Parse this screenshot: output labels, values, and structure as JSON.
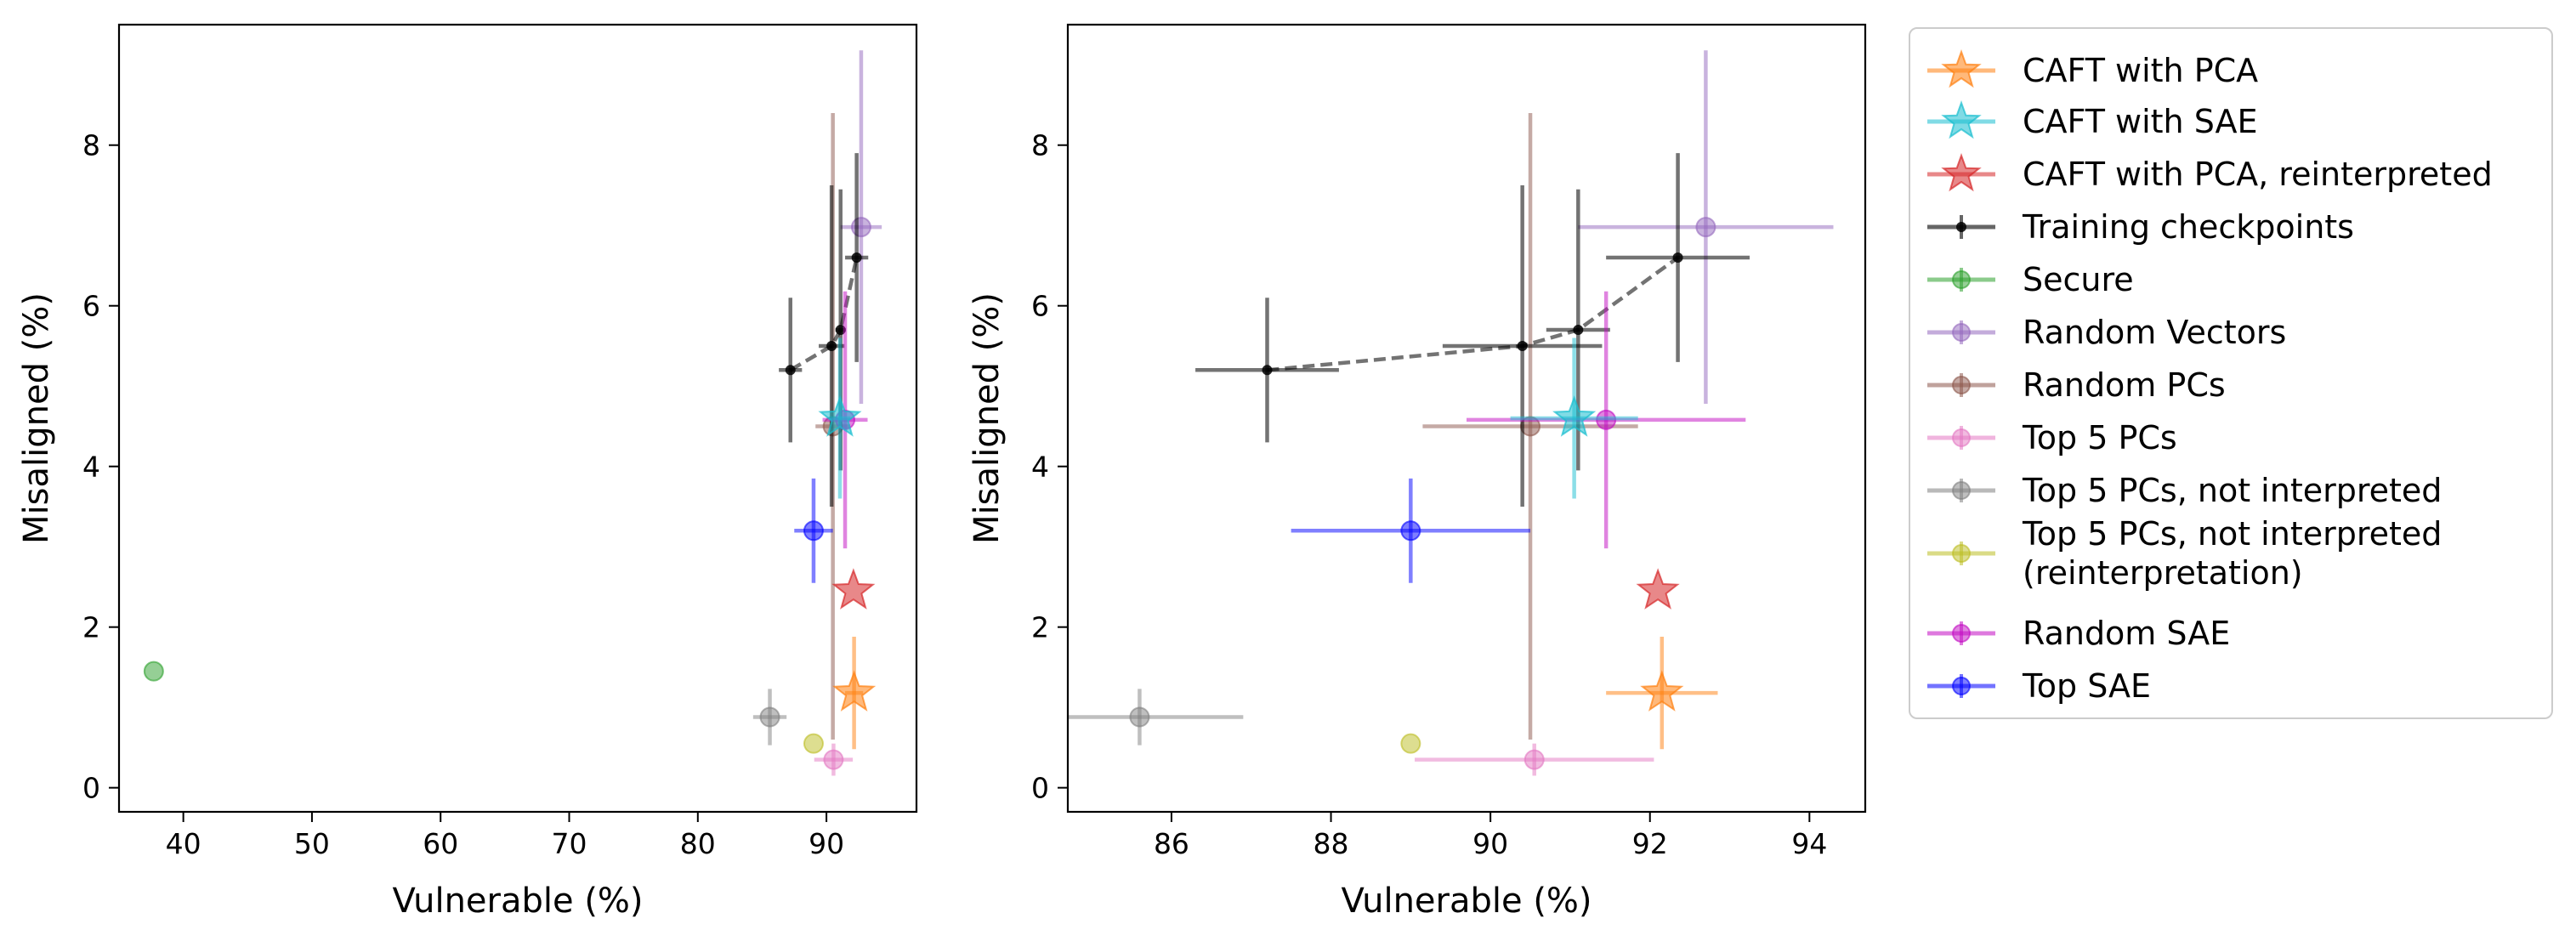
{
  "chart_data": [
    {
      "type": "scatter",
      "xlabel": "Vulnerable (%)",
      "ylabel": "Misaligned (%)",
      "xlim": [
        35,
        97
      ],
      "ylim": [
        -0.3,
        9.5
      ],
      "xticks": [
        40,
        50,
        60,
        70,
        80,
        90
      ],
      "yticks": [
        0,
        2,
        4,
        6,
        8
      ],
      "grid": false
    },
    {
      "type": "scatter",
      "xlabel": "Vulnerable (%)",
      "ylabel": "Misaligned (%)",
      "xlim": [
        84.7,
        94.7
      ],
      "ylim": [
        -0.3,
        9.5
      ],
      "xticks": [
        86,
        88,
        90,
        92,
        94
      ],
      "yticks": [
        0,
        2,
        4,
        6,
        8
      ],
      "grid": false
    }
  ],
  "series": [
    {
      "name": "CAFT with PCA",
      "color": "#ff7f0e",
      "marker": "star",
      "points": [
        {
          "x": 92.15,
          "y": 1.18,
          "xerr": 0.7,
          "yerr": 0.7
        }
      ]
    },
    {
      "name": "CAFT with SAE",
      "color": "#17becf",
      "marker": "star",
      "points": [
        {
          "x": 91.05,
          "y": 4.6,
          "xerr": 0.8,
          "yerr": 1.0
        }
      ]
    },
    {
      "name": "CAFT with PCA, reinterpreted",
      "color": "#d62728",
      "marker": "star",
      "points": [
        {
          "x": 92.1,
          "y": 2.45,
          "xerr": 0,
          "yerr": 0
        }
      ]
    },
    {
      "name": "Training checkpoints",
      "color": "#000000",
      "marker": "dot",
      "line": "dashed",
      "points": [
        {
          "x": 87.2,
          "y": 5.2,
          "xerr": 0.9,
          "yerr": 0.9
        },
        {
          "x": 90.4,
          "y": 5.5,
          "xerr": 1.0,
          "yerr": 2.0
        },
        {
          "x": 91.1,
          "y": 5.7,
          "xerr": 0.4,
          "yerr": 1.75
        },
        {
          "x": 92.35,
          "y": 6.6,
          "xerr": 0.9,
          "yerr": 1.3
        }
      ]
    },
    {
      "name": "Secure",
      "color": "#2ca02c",
      "marker": "circle",
      "points": [
        {
          "x": 37.7,
          "y": 1.45,
          "xerr": 0,
          "yerr": 0
        }
      ]
    },
    {
      "name": "Random Vectors",
      "color": "#9467bd",
      "marker": "circle",
      "points": [
        {
          "x": 92.7,
          "y": 6.98,
          "xerr": 1.6,
          "yerr": 2.2
        }
      ]
    },
    {
      "name": "Random PCs",
      "color": "#8c564b",
      "marker": "circle",
      "points": [
        {
          "x": 90.5,
          "y": 4.5,
          "xerr": 1.35,
          "yerr": 3.9
        }
      ]
    },
    {
      "name": "Top 5 PCs",
      "color": "#e377c2",
      "marker": "circle",
      "points": [
        {
          "x": 90.55,
          "y": 0.35,
          "xerr": 1.5,
          "yerr": 0.2
        }
      ]
    },
    {
      "name": "Top 5 PCs, not interpreted",
      "color": "#7f7f7f",
      "marker": "circle",
      "points": [
        {
          "x": 85.6,
          "y": 0.88,
          "xerr": 1.3,
          "yerr": 0.35
        }
      ]
    },
    {
      "name": "Top 5 PCs, not interpreted\n(reinterpretation)",
      "color": "#bcbd22",
      "marker": "circle",
      "points": [
        {
          "x": 89.0,
          "y": 0.55,
          "xerr": 0,
          "yerr": 0
        }
      ]
    },
    {
      "name": "Random SAE",
      "color": "#c20ac2",
      "marker": "circle",
      "points": [
        {
          "x": 91.45,
          "y": 4.58,
          "xerr": 1.75,
          "yerr": 1.6
        }
      ]
    },
    {
      "name": "Top SAE",
      "color": "#0000ff",
      "marker": "circle",
      "points": [
        {
          "x": 89.0,
          "y": 3.2,
          "xerr": 1.5,
          "yerr": 0.65
        }
      ]
    }
  ],
  "legend": {
    "placement": "outside-right",
    "labels": [
      "CAFT with PCA",
      "CAFT with SAE",
      "CAFT with PCA, reinterpreted",
      "Training checkpoints",
      "Secure",
      "Random Vectors",
      "Random PCs",
      "Top 5 PCs",
      "Top 5 PCs, not interpreted",
      "Top 5 PCs, not interpreted (reinterpretation)",
      "Random SAE",
      "Top SAE"
    ]
  }
}
